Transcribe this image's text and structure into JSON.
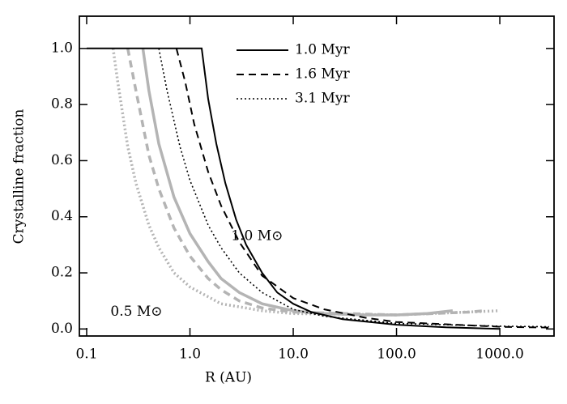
{
  "chart_data": {
    "type": "line",
    "x_label": "R (AU)",
    "y_label": "Crystalline fraction",
    "x_scale": "log",
    "xlim": [
      0.085,
      3350
    ],
    "ylim": [
      -0.025,
      1.115
    ],
    "xticks": [
      0.1,
      {
        "value": 1,
        "label": "1.0"
      },
      {
        "value": 10,
        "label": "10.0"
      },
      {
        "value": 100,
        "label": "100.0"
      },
      {
        "value": 1000,
        "label": "1000.0"
      }
    ],
    "yticks": [
      {
        "value": 0,
        "label": "0.0"
      },
      0.2,
      0.4,
      0.6,
      0.8,
      {
        "value": 1,
        "label": "1.0"
      }
    ],
    "legend": "top",
    "series": [
      {
        "name": "1.0 Myr",
        "color": "#000000",
        "dash": "solid",
        "width": 2,
        "x": [
          0.1,
          1.3,
          1.5,
          1.8,
          2.2,
          2.8,
          3.5,
          5,
          7,
          10,
          15,
          30,
          100,
          300,
          1000
        ],
        "values": [
          1,
          1,
          0.82,
          0.66,
          0.52,
          0.39,
          0.3,
          0.2,
          0.13,
          0.09,
          0.06,
          0.035,
          0.015,
          0.006,
          0
        ]
      },
      {
        "name": "1.6 Myr",
        "color": "#000000",
        "dash": "dashed",
        "width": 2,
        "x": [
          0.74,
          0.9,
          1.1,
          1.5,
          2,
          3,
          5,
          10,
          20,
          50,
          100,
          1000,
          3000
        ],
        "values": [
          1,
          0.88,
          0.73,
          0.56,
          0.44,
          0.31,
          0.19,
          0.11,
          0.07,
          0.04,
          0.025,
          0.008,
          0.005
        ]
      },
      {
        "name": "3.1 Myr",
        "color": "#000000",
        "dash": "dotted",
        "width": 1.6,
        "x": [
          0.5,
          0.6,
          0.8,
          1,
          1.5,
          2,
          3,
          5,
          10,
          20,
          100,
          1000,
          3000
        ],
        "values": [
          1,
          0.85,
          0.65,
          0.53,
          0.37,
          0.29,
          0.2,
          0.13,
          0.07,
          0.045,
          0.02,
          0.01,
          0.008
        ]
      },
      {
        "color": "#b4b4b4",
        "dash": "solid",
        "width": 3.5,
        "x": [
          0.35,
          0.4,
          0.5,
          0.7,
          1,
          1.5,
          2,
          3,
          5,
          10,
          20,
          50,
          100,
          200,
          350
        ],
        "values": [
          1,
          0.85,
          0.66,
          0.47,
          0.34,
          0.24,
          0.18,
          0.13,
          0.09,
          0.065,
          0.055,
          0.05,
          0.05,
          0.055,
          0.065
        ]
      },
      {
        "color": "#b4b4b4",
        "dash": "dashed",
        "width": 3.5,
        "x": [
          0.25,
          0.3,
          0.4,
          0.5,
          0.7,
          1,
          1.5,
          2,
          3,
          5,
          10,
          100,
          500,
          700
        ],
        "values": [
          1,
          0.85,
          0.62,
          0.5,
          0.36,
          0.26,
          0.18,
          0.14,
          0.1,
          0.075,
          0.06,
          0.05,
          0.06,
          0.065
        ]
      },
      {
        "color": "#b4b4b4",
        "dash": "dotted",
        "width": 3.5,
        "x": [
          0.18,
          0.2,
          0.25,
          0.3,
          0.4,
          0.5,
          0.7,
          1,
          2,
          5,
          10,
          100,
          1000
        ],
        "values": [
          1,
          0.88,
          0.65,
          0.52,
          0.37,
          0.29,
          0.2,
          0.15,
          0.09,
          0.065,
          0.055,
          0.05,
          0.065
        ]
      }
    ],
    "annotations": [
      {
        "text": "1.0 M⊙",
        "x": 2.5,
        "y": 0.33,
        "color": "#000000"
      },
      {
        "text": "0.5 M⊙",
        "x": 0.17,
        "y": 0.06,
        "color": "#a0a0a0"
      }
    ]
  }
}
